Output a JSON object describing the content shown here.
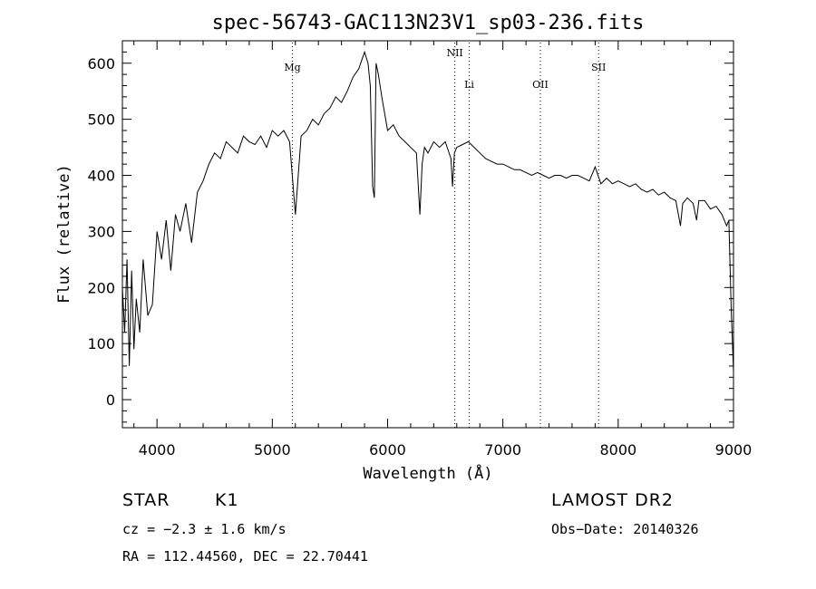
{
  "chart_data": {
    "type": "line",
    "title": "spec-56743-GAC113N23V1_sp03-236.fits",
    "xlabel": "Wavelength (Å)",
    "ylabel": "Flux (relative)",
    "xlim": [
      3700,
      9000
    ],
    "ylim": [
      -50,
      640
    ],
    "x_ticks": [
      4000,
      5000,
      6000,
      7000,
      8000,
      9000
    ],
    "y_ticks": [
      0,
      100,
      200,
      300,
      400,
      500,
      600
    ],
    "grid": false,
    "series": [
      {
        "x": [
          3700,
          3720,
          3740,
          3760,
          3780,
          3800,
          3820,
          3850,
          3880,
          3920,
          3960,
          4000,
          4040,
          4080,
          4120,
          4160,
          4200,
          4250,
          4300,
          4350,
          4400,
          4450,
          4500,
          4550,
          4600,
          4650,
          4700,
          4750,
          4800,
          4850,
          4900,
          4950,
          5000,
          5050,
          5100,
          5150,
          5200,
          5250,
          5300,
          5350,
          5400,
          5450,
          5500,
          5550,
          5600,
          5650,
          5700,
          5750,
          5800,
          5830,
          5850,
          5870,
          5885,
          5900,
          5920,
          5950,
          6000,
          6050,
          6100,
          6150,
          6200,
          6250,
          6280,
          6300,
          6320,
          6350,
          6400,
          6450,
          6500,
          6550,
          6563,
          6580,
          6600,
          6650,
          6700,
          6750,
          6800,
          6850,
          6900,
          6950,
          7000,
          7050,
          7100,
          7150,
          7200,
          7250,
          7300,
          7350,
          7400,
          7450,
          7500,
          7550,
          7600,
          7650,
          7700,
          7750,
          7800,
          7850,
          7900,
          7950,
          8000,
          8050,
          8100,
          8150,
          8200,
          8250,
          8300,
          8350,
          8400,
          8450,
          8500,
          8540,
          8560,
          8600,
          8650,
          8680,
          8700,
          8750,
          8800,
          8850,
          8900,
          8940,
          8960,
          8980,
          9000
        ],
        "values": [
          200,
          120,
          250,
          60,
          230,
          90,
          180,
          120,
          250,
          150,
          170,
          300,
          250,
          320,
          230,
          330,
          300,
          350,
          280,
          370,
          390,
          420,
          440,
          430,
          460,
          450,
          440,
          470,
          460,
          455,
          470,
          450,
          480,
          470,
          480,
          460,
          330,
          470,
          480,
          500,
          490,
          510,
          520,
          540,
          530,
          550,
          575,
          590,
          620,
          600,
          560,
          380,
          360,
          600,
          580,
          540,
          480,
          490,
          470,
          460,
          450,
          440,
          330,
          420,
          450,
          440,
          460,
          450,
          460,
          430,
          380,
          440,
          450,
          455,
          460,
          450,
          440,
          430,
          425,
          420,
          420,
          415,
          410,
          410,
          405,
          400,
          405,
          400,
          395,
          400,
          400,
          395,
          400,
          400,
          395,
          390,
          415,
          385,
          395,
          385,
          390,
          385,
          380,
          385,
          375,
          370,
          375,
          365,
          370,
          360,
          355,
          310,
          350,
          360,
          350,
          320,
          355,
          355,
          340,
          345,
          330,
          310,
          320,
          160,
          50
        ]
      }
    ],
    "vertical_lines": [
      {
        "label": "Mg",
        "x": 5175
      },
      {
        "label": "NII",
        "x": 6583
      },
      {
        "label": "Li",
        "x": 6708
      },
      {
        "label": "OII",
        "x": 7325
      },
      {
        "label": "SII",
        "x": 7830
      }
    ]
  },
  "info": {
    "object_type": "STAR",
    "subclass": "K1",
    "survey": "LAMOST DR2",
    "cz": "cz = −2.3 ± 1.6 km/s",
    "obs_date": "Obs−Date: 20140326",
    "coords": "RA = 112.44560, DEC =  22.70441"
  }
}
